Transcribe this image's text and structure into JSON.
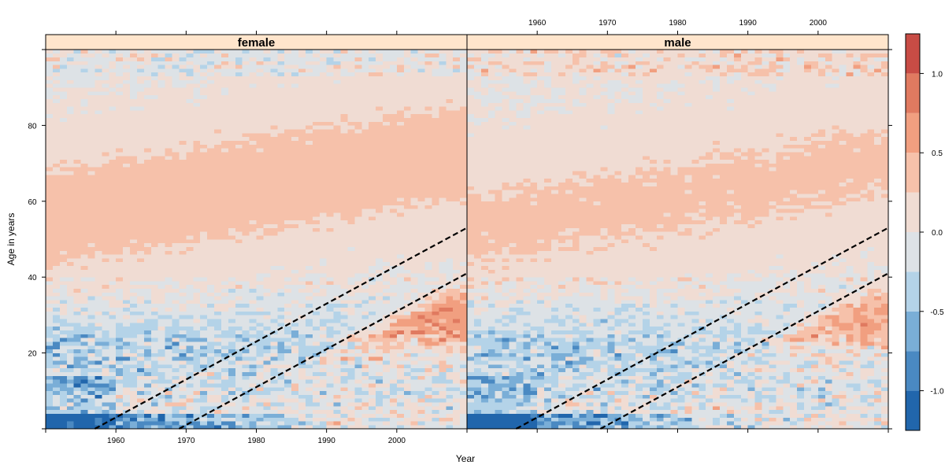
{
  "chart_data": {
    "type": "heatmap",
    "xlabel": "Year",
    "ylabel": "Age in years",
    "xlim": [
      1950,
      2010
    ],
    "ylim": [
      0,
      100
    ],
    "panels": [
      {
        "label": "female"
      },
      {
        "label": "male"
      }
    ],
    "x_ticks": [
      1960,
      1970,
      1980,
      1990,
      2000
    ],
    "x_tick_labels": [
      "1960",
      "1970",
      "1980",
      "1990",
      "2000"
    ],
    "y_ticks": [
      20,
      40,
      60,
      80
    ],
    "y_tick_labels": [
      "20",
      "40",
      "60",
      "80"
    ],
    "colorbar": {
      "ticks": [
        -1.0,
        -0.5,
        0.0,
        0.5,
        1.0
      ],
      "tick_labels": [
        "-1.0",
        "-0.5",
        "0.0",
        "0.5",
        "1.0"
      ],
      "breaks": [
        -1.25,
        -1.0,
        -0.75,
        -0.5,
        -0.25,
        0.0,
        0.25,
        0.5,
        0.75,
        1.0,
        1.25
      ],
      "colors": [
        "#2166ac",
        "#4a89c2",
        "#7aaed7",
        "#b4d3e8",
        "#dde2e6",
        "#f0dcd3",
        "#f6c1aa",
        "#f19f80",
        "#e07a60",
        "#c84c45",
        "#b2182b"
      ]
    },
    "cohort_lines": [
      {
        "birth_year": 1957,
        "style": "dashed"
      },
      {
        "birth_year": 1969,
        "style": "dashed"
      }
    ]
  }
}
